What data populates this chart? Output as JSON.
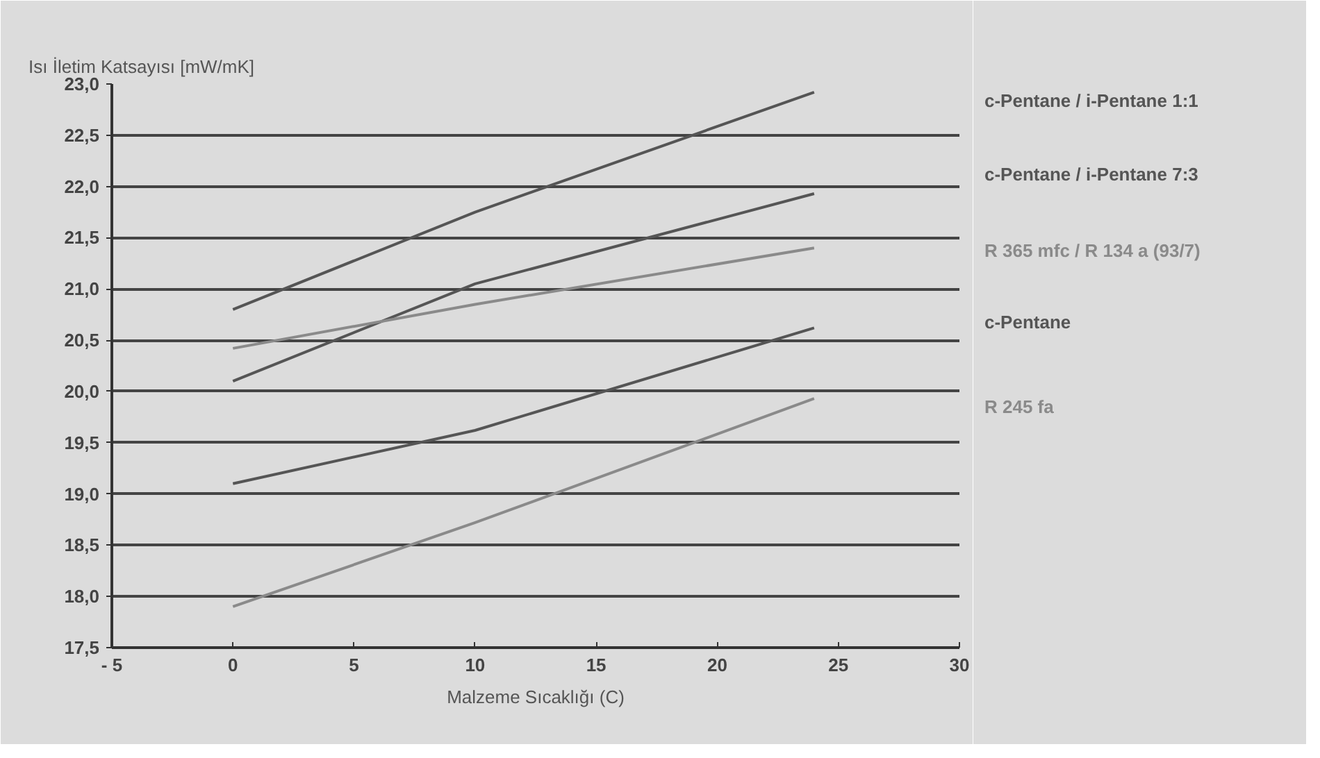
{
  "chart_data": {
    "type": "line",
    "ylabel": "Isı İletim Katsayısı [mW/mK]",
    "xlabel": "Malzeme Sıcaklığı (C)",
    "xlim": [
      -5,
      30
    ],
    "xticks": [
      {
        "value": -5,
        "label": "- 5"
      },
      0,
      5,
      10,
      15,
      20,
      25,
      30
    ],
    "ylim": [
      17.5,
      23.0
    ],
    "yticks": [
      {
        "value": 17.5,
        "label": "17,5"
      },
      {
        "value": 18.0,
        "label": "18,0"
      },
      {
        "value": 18.5,
        "label": "18,5"
      },
      {
        "value": 19.0,
        "label": "19,0"
      },
      {
        "value": 19.5,
        "label": "19,5"
      },
      {
        "value": 20.0,
        "label": "20,0"
      },
      {
        "value": 20.5,
        "label": "20,5"
      },
      {
        "value": 21.0,
        "label": "21,0"
      },
      {
        "value": 21.5,
        "label": "21,5"
      },
      {
        "value": 22.0,
        "label": "22,0"
      },
      {
        "value": 22.5,
        "label": "22,5"
      },
      {
        "value": 23.0,
        "label": "23,0"
      }
    ],
    "x": [
      0,
      10,
      24
    ],
    "grid": "y",
    "marker": "none",
    "line_style": "solid",
    "series": [
      {
        "name": "c-Pentane / i-Pentane 1:1",
        "color": "#555555",
        "values": [
          20.8,
          21.75,
          22.92
        ]
      },
      {
        "name": "c-Pentane / i-Pentane 7:3",
        "color": "#555555",
        "values": [
          20.1,
          21.05,
          21.93
        ]
      },
      {
        "name": "R 365 mfc / R 134 a (93/7)",
        "color": "#8a8a8a",
        "values": [
          20.42,
          20.85,
          21.4
        ]
      },
      {
        "name": "c-Pentane",
        "color": "#555555",
        "values": [
          19.1,
          19.62,
          20.62
        ]
      },
      {
        "name": "R 245 fa",
        "color": "#8a8a8a",
        "values": [
          17.9,
          18.72,
          19.93
        ]
      }
    ]
  }
}
